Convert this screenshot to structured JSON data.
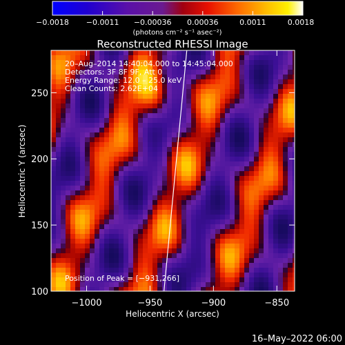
{
  "chart_data": {
    "type": "heatmap",
    "title": "Reconstructed RHESSI Image",
    "xlabel": "Heliocentric X (arcsec)",
    "ylabel": "Heliocentric Y (arcsec)",
    "xlim": [
      -1028,
      -836
    ],
    "ylim": [
      100,
      282
    ],
    "x_ticks": [
      -1000,
      -950,
      -900,
      -850
    ],
    "x_tick_labels": [
      "−1000",
      "−950",
      "−900",
      "−850"
    ],
    "y_ticks": [
      100,
      150,
      200,
      250
    ],
    "y_tick_labels": [
      "100",
      "150",
      "200",
      "250"
    ],
    "colorbar": {
      "range": [
        -0.0018,
        0.0018
      ],
      "tick_labels": [
        "−0.0018",
        "−0.0011",
        "−0.00036",
        "0.00036",
        "0.0011",
        "0.0018"
      ],
      "unit_label": "(photons cm⁻² s⁻¹ asec⁻²)",
      "colors": [
        "#0000ff",
        "#4b00a0",
        "#7a1f9e",
        "#b00000",
        "#ff3000",
        "#ff9a00",
        "#ffe000",
        "#ffffff"
      ]
    },
    "peak_position": [
      -931,
      266
    ],
    "limb_line": [
      [
        -939,
        100
      ],
      [
        -921,
        282
      ]
    ],
    "annotations": {
      "time_range": "20–Aug–2014 14:40:04.000 to 14:45:04.000",
      "detectors": "Detectors: 3F 8F 9F, Att 0",
      "energy_range": "Energy Range: 12.0 – 25.0 keV",
      "clean_counts": "Clean    Counts: 2.62E+04",
      "peak_text": "Position of Peak = [−931,266]"
    },
    "timestamp": "16–May–2022 06:00",
    "grid": false,
    "legend": "none"
  }
}
